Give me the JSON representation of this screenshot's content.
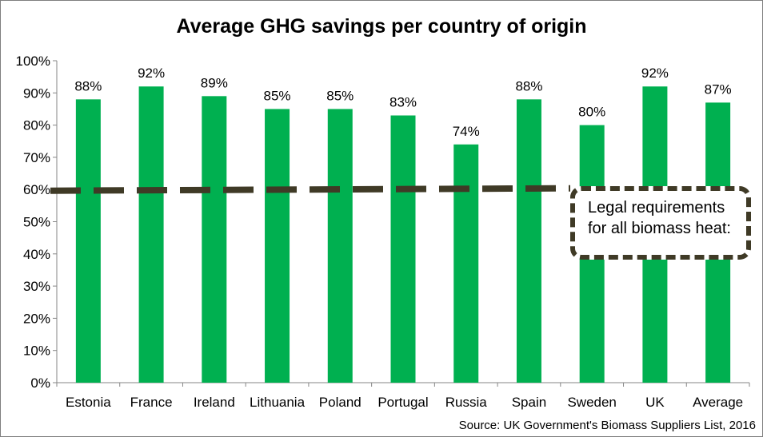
{
  "chart_data": {
    "type": "bar",
    "title": "Average GHG savings per country of origin",
    "categories": [
      "Estonia",
      "France",
      "Ireland",
      "Lithuania",
      "Poland",
      "Portugal",
      "Russia",
      "Spain",
      "Sweden",
      "UK",
      "Average"
    ],
    "values": [
      88,
      92,
      89,
      85,
      85,
      83,
      74,
      88,
      80,
      92,
      87
    ],
    "data_labels": [
      "88%",
      "92%",
      "89%",
      "85%",
      "85%",
      "83%",
      "74%",
      "88%",
      "80%",
      "92%",
      "87%"
    ],
    "ylim": [
      0,
      100
    ],
    "yticks": [
      0,
      10,
      20,
      30,
      40,
      50,
      60,
      70,
      80,
      90,
      100
    ],
    "ytick_labels": [
      "0%",
      "10%",
      "20%",
      "30%",
      "40%",
      "50%",
      "60%",
      "70%",
      "80%",
      "90%",
      "100%"
    ],
    "reference_line": {
      "value": 60,
      "style": "dashed"
    },
    "bar_color": "#00b050",
    "reference_color": "#3f3a26",
    "grid": false,
    "legend": "none"
  },
  "annotation": {
    "text": "Legal requirements\nfor all biomass heat:"
  },
  "source": "Source: UK Government's Biomass Suppliers List, 2016"
}
